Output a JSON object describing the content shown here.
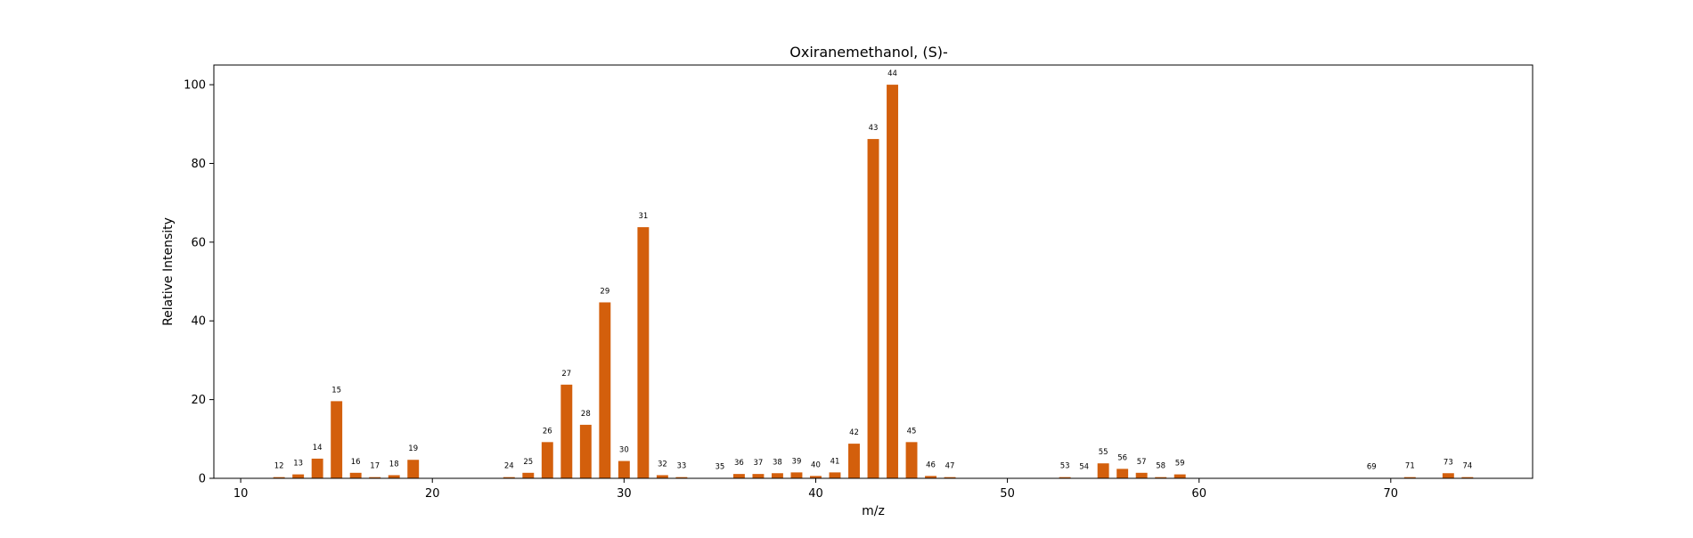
{
  "chart_data": {
    "type": "bar",
    "title": "Oxiranemethanol, (S)-",
    "xlabel": "m/z",
    "ylabel": "Relative Intensity",
    "xlim": [
      8.6,
      77.4
    ],
    "ylim": [
      0,
      105
    ],
    "xticks": [
      10,
      20,
      30,
      40,
      50,
      60,
      70
    ],
    "yticks": [
      0,
      20,
      40,
      60,
      80,
      100
    ],
    "bar_color": "#d35f0c",
    "grid": false,
    "legend": "none",
    "x": [
      12,
      13,
      14,
      15,
      16,
      17,
      18,
      19,
      24,
      25,
      26,
      27,
      28,
      29,
      30,
      31,
      32,
      33,
      35,
      36,
      37,
      38,
      39,
      40,
      41,
      42,
      43,
      44,
      45,
      46,
      47,
      53,
      54,
      55,
      56,
      57,
      58,
      59,
      69,
      71,
      73,
      74
    ],
    "values": [
      0.3,
      1.0,
      5.0,
      19.6,
      1.4,
      0.3,
      0.8,
      4.7,
      0.3,
      1.4,
      9.2,
      23.8,
      13.6,
      44.7,
      4.4,
      63.8,
      0.8,
      0.3,
      0.1,
      1.1,
      1.1,
      1.3,
      1.5,
      0.6,
      1.5,
      8.8,
      86.2,
      100.0,
      9.2,
      0.6,
      0.3,
      0.3,
      0.1,
      3.8,
      2.4,
      1.4,
      0.3,
      1.0,
      0.1,
      0.3,
      1.3,
      0.3
    ],
    "labels": [
      "12",
      "13",
      "14",
      "15",
      "16",
      "17",
      "18",
      "19",
      "24",
      "25",
      "26",
      "27",
      "28",
      "29",
      "30",
      "31",
      "32",
      "33",
      "35",
      "36",
      "37",
      "38",
      "39",
      "40",
      "41",
      "42",
      "43",
      "44",
      "45",
      "46",
      "47",
      "53",
      "54",
      "55",
      "56",
      "57",
      "58",
      "59",
      "69",
      "71",
      "73",
      "74"
    ]
  }
}
